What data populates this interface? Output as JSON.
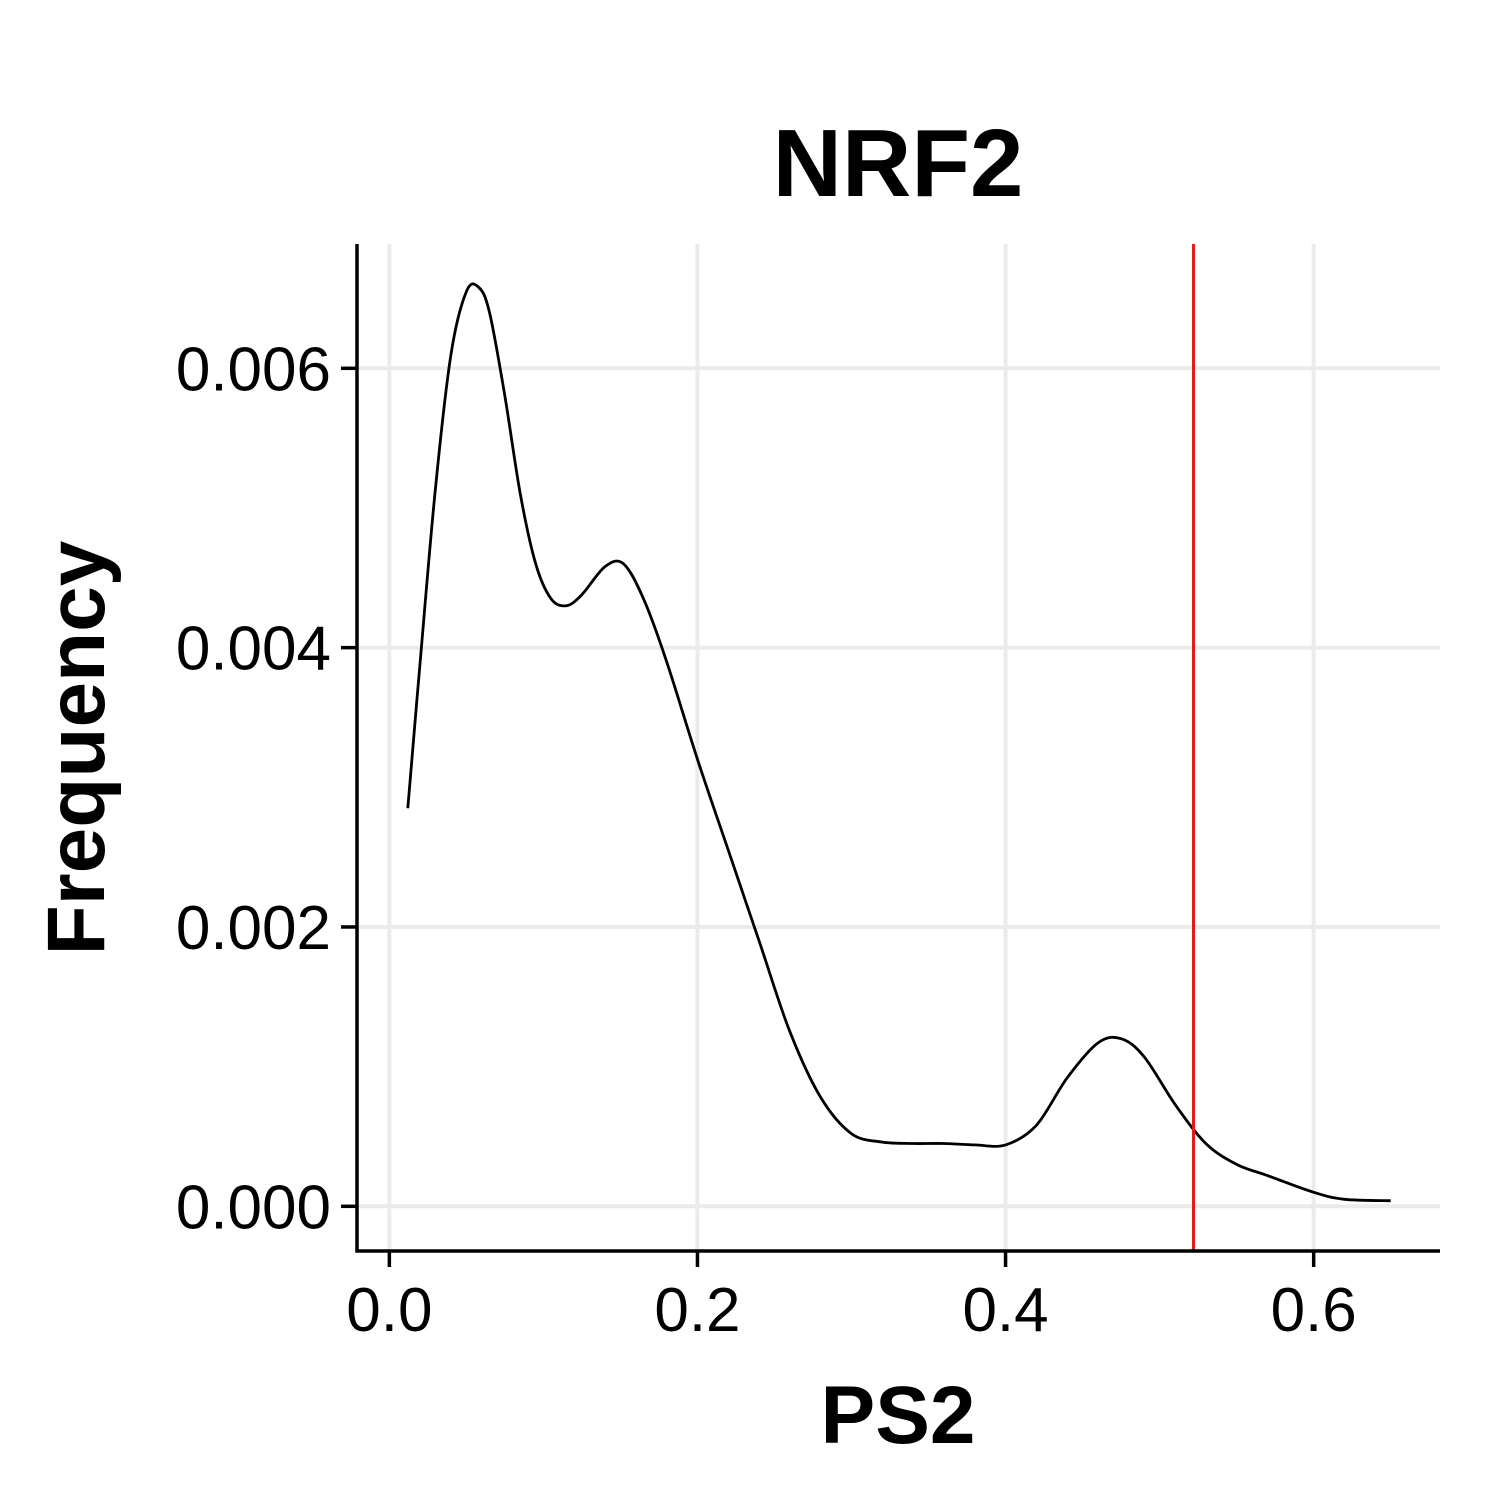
{
  "chart_data": {
    "type": "line",
    "title": "NRF2",
    "xlabel": "PS2",
    "ylabel": "Frequency",
    "xlim": [
      -0.021,
      0.682
    ],
    "ylim": [
      -0.00032,
      0.00689
    ],
    "xticks": [
      {
        "value": 0.0,
        "label": "0.0"
      },
      {
        "value": 0.2,
        "label": "0.2"
      },
      {
        "value": 0.4,
        "label": "0.4"
      },
      {
        "value": 0.6,
        "label": "0.6"
      }
    ],
    "yticks": [
      {
        "value": 0.0,
        "label": "0.000"
      },
      {
        "value": 0.002,
        "label": "0.002"
      },
      {
        "value": 0.004,
        "label": "0.004"
      },
      {
        "value": 0.006,
        "label": "0.006"
      }
    ],
    "grid": true,
    "vline": {
      "x": 0.522,
      "color": "#e41a1c"
    },
    "series": [
      {
        "color": "#000000",
        "x": [
          0.012,
          0.02,
          0.03,
          0.04,
          0.05,
          0.058,
          0.065,
          0.075,
          0.085,
          0.095,
          0.105,
          0.115,
          0.125,
          0.14,
          0.152,
          0.165,
          0.18,
          0.2,
          0.22,
          0.24,
          0.26,
          0.28,
          0.3,
          0.32,
          0.34,
          0.36,
          0.38,
          0.4,
          0.42,
          0.44,
          0.46,
          0.475,
          0.49,
          0.51,
          0.53,
          0.55,
          0.57,
          0.6,
          0.62,
          0.65
        ],
        "y": [
          0.00285,
          0.0039,
          0.00515,
          0.0061,
          0.00655,
          0.00658,
          0.0064,
          0.0058,
          0.0051,
          0.0046,
          0.00435,
          0.0043,
          0.00438,
          0.00458,
          0.0046,
          0.00435,
          0.0039,
          0.0032,
          0.00255,
          0.0019,
          0.00125,
          0.00078,
          0.00052,
          0.00046,
          0.00045,
          0.00045,
          0.00044,
          0.00044,
          0.00058,
          0.00092,
          0.00117,
          0.0012,
          0.00107,
          0.00073,
          0.00045,
          0.0003,
          0.00022,
          0.0001,
          5e-05,
          4e-05
        ]
      }
    ]
  }
}
